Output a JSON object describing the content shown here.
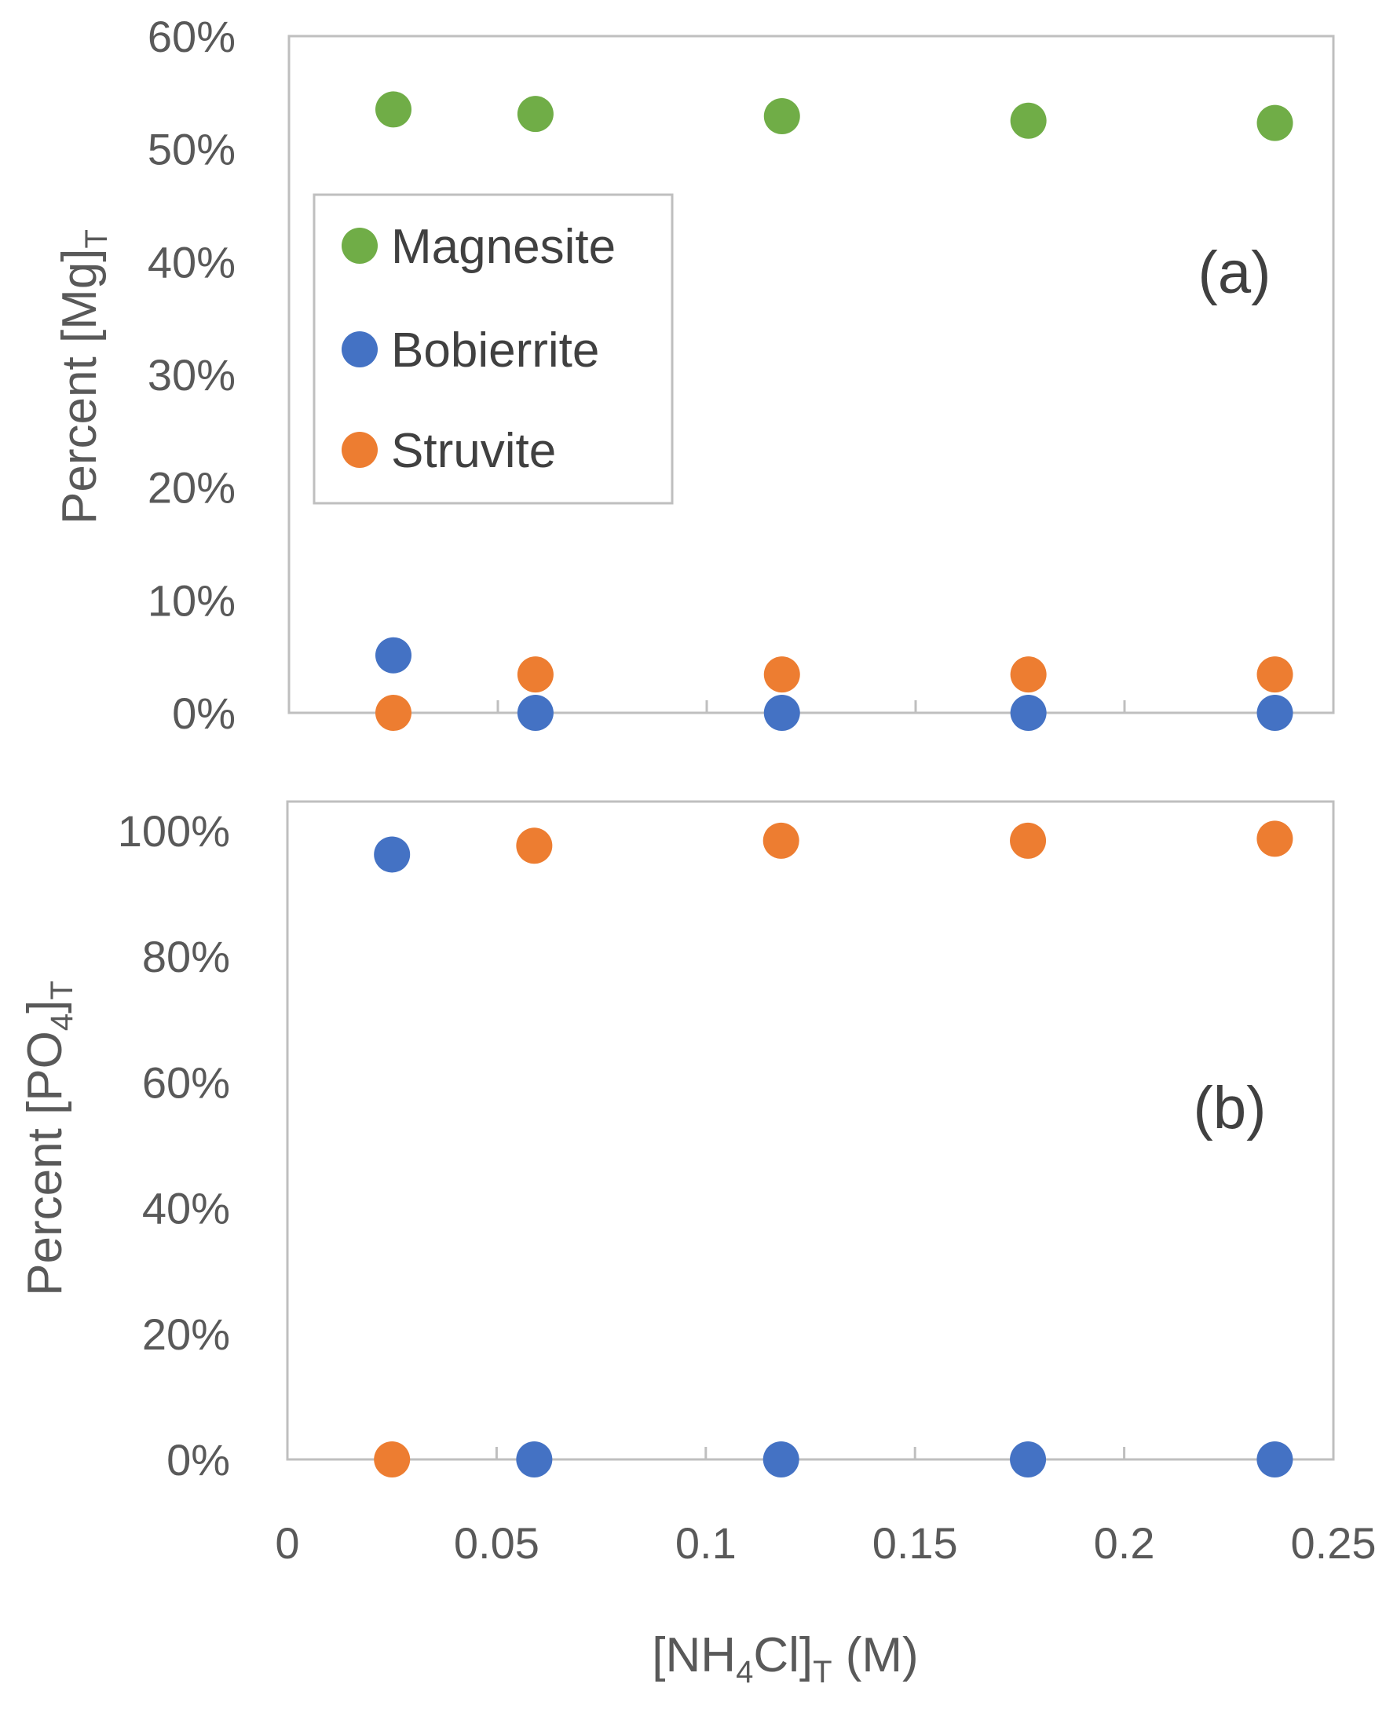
{
  "chart_data": [
    {
      "type": "scatter",
      "panel_label": "(a)",
      "ylabel": {
        "text": "Percent [Mg]",
        "sub": "T"
      },
      "ylim": [
        0,
        60
      ],
      "y_ticks": [
        "0%",
        "10%",
        "20%",
        "30%",
        "40%",
        "50%",
        "60%"
      ],
      "xlim": [
        0,
        0.25
      ],
      "legend_position": "left-middle",
      "legend": [
        "Magnesite",
        "Bobierrite",
        "Struvite"
      ],
      "series": [
        {
          "name": "Magnesite",
          "color": "#70ad47",
          "x": [
            0.025,
            0.059,
            0.118,
            0.177,
            0.236
          ],
          "y": [
            53.5,
            53.1,
            52.9,
            52.5,
            52.3
          ]
        },
        {
          "name": "Bobierrite",
          "color": "#4472c4",
          "x": [
            0.025,
            0.059,
            0.118,
            0.177,
            0.236
          ],
          "y": [
            5.1,
            0,
            0,
            0,
            0
          ]
        },
        {
          "name": "Struvite",
          "color": "#ed7d31",
          "x": [
            0.025,
            0.059,
            0.118,
            0.177,
            0.236
          ],
          "y": [
            0,
            3.4,
            3.4,
            3.4,
            3.4
          ]
        }
      ]
    },
    {
      "type": "scatter",
      "panel_label": "(b)",
      "ylabel": {
        "text": "Percent [PO",
        "sub1": "4",
        "mid": "]",
        "sub": "T"
      },
      "ylim": [
        0,
        100
      ],
      "y_ticks": [
        "0%",
        "20%",
        "40%",
        "60%",
        "80%",
        "100%"
      ],
      "xlim": [
        0,
        0.25
      ],
      "x_ticks": [
        "0",
        "0.05",
        "0.1",
        "0.15",
        "0.2",
        "0.25"
      ],
      "xlabel": {
        "pre": "[NH",
        "sub1": "4",
        "mid": "Cl]",
        "sub2": "T",
        "post": " (M)"
      },
      "series": [
        {
          "name": "Bobierrite",
          "color": "#4472c4",
          "x": [
            0.025,
            0.059,
            0.118,
            0.177,
            0.236
          ],
          "y": [
            96.2,
            0,
            0,
            0,
            0
          ]
        },
        {
          "name": "Struvite",
          "color": "#ed7d31",
          "x": [
            0.025,
            0.059,
            0.118,
            0.177,
            0.236
          ],
          "y": [
            0,
            97.6,
            98.4,
            98.4,
            98.7
          ]
        }
      ]
    }
  ]
}
